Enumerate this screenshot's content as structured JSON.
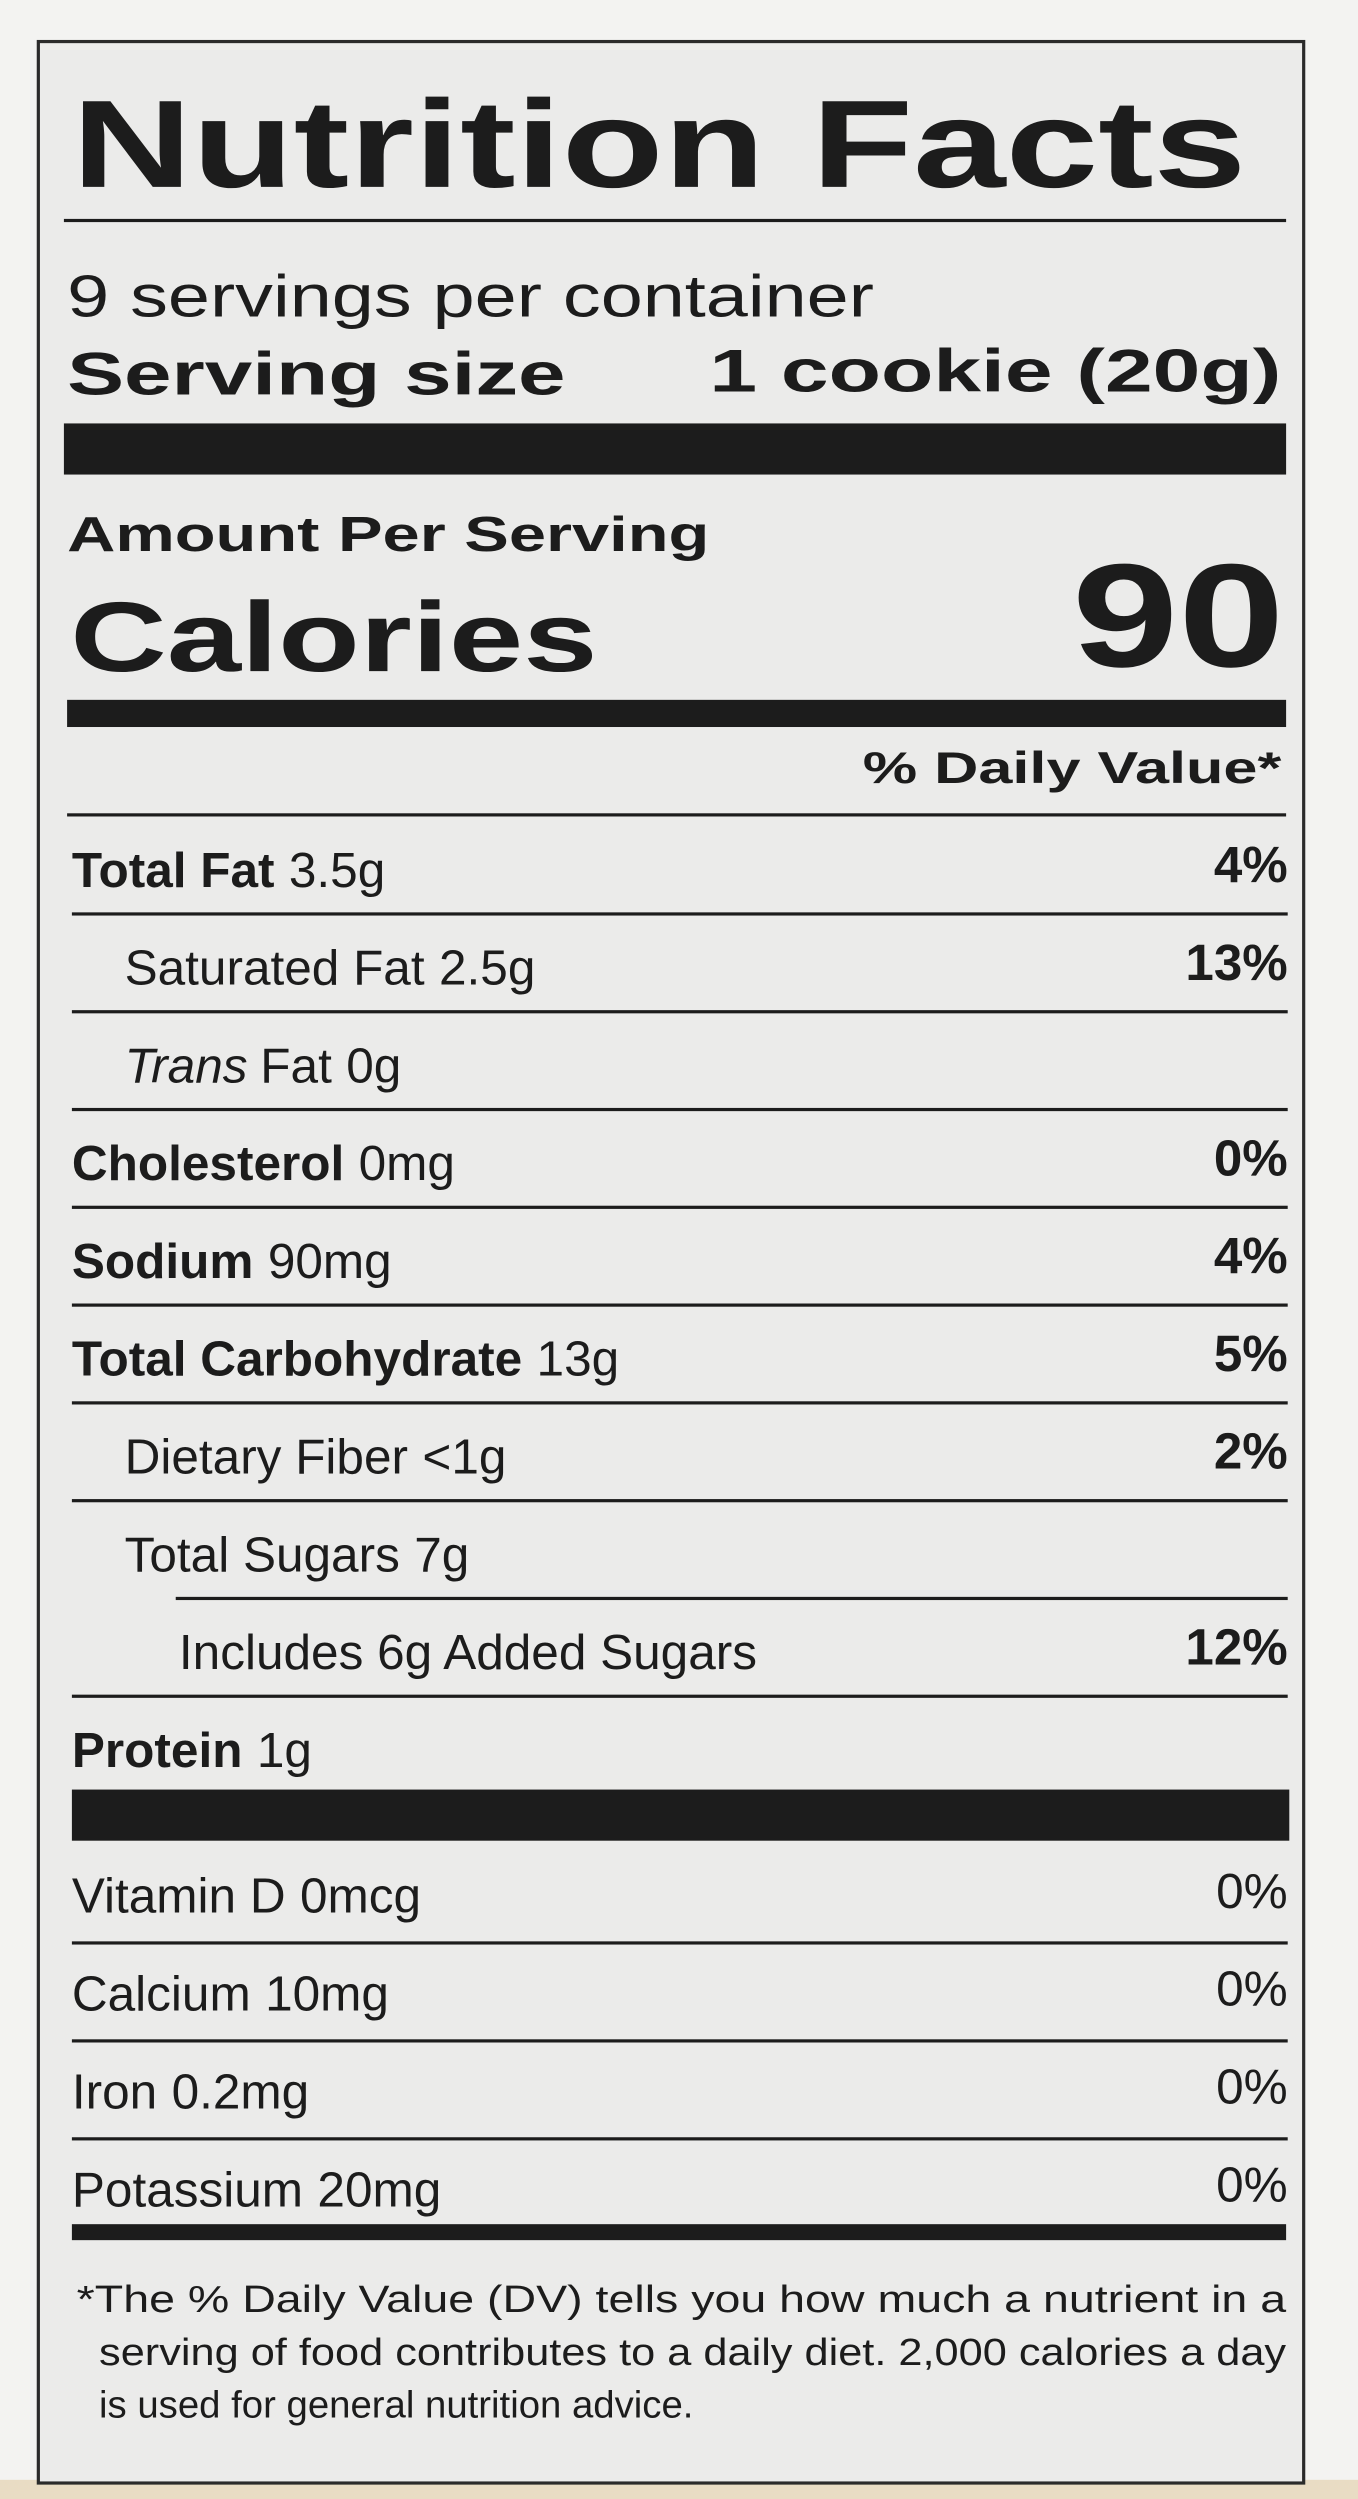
{
  "title": "Nutrition Facts",
  "servings": "9 servings per container",
  "serving_size": {
    "label": "Serving size",
    "value": "1 cookie (20g)"
  },
  "amount_per_serving": "Amount Per Serving",
  "calories": {
    "label": "Calories",
    "value": "90"
  },
  "daily_value_header": "% Daily Value*",
  "nutrients": [
    {
      "name": "Total Fat",
      "amount": "3.5g",
      "dv": "4%",
      "bold": true,
      "indent": 0
    },
    {
      "name": "Saturated Fat",
      "amount": "2.5g",
      "dv": "13%",
      "bold": false,
      "indent": 1
    },
    {
      "name_italic": "Trans",
      "name": "Fat",
      "amount": "0g",
      "bold": false,
      "indent": 1
    },
    {
      "name": "Cholesterol",
      "amount": "0mg",
      "dv": "0%",
      "bold": true,
      "indent": 0
    },
    {
      "name": "Sodium",
      "amount": "90mg",
      "dv": "4%",
      "bold": true,
      "indent": 0
    },
    {
      "name": "Total Carbohydrate",
      "amount": "13g",
      "dv": "5%",
      "bold": true,
      "indent": 0
    },
    {
      "name": "Dietary Fiber",
      "amount": "<1g",
      "dv": "2%",
      "bold": false,
      "indent": 1
    },
    {
      "name": "Total Sugars",
      "amount": "7g",
      "bold": false,
      "indent": 1
    },
    {
      "name": "Includes 6g Added Sugars",
      "dv": "12%",
      "bold": false,
      "indent": 2
    },
    {
      "name": "Protein",
      "amount": "1g",
      "bold": true,
      "indent": 0
    }
  ],
  "vitamins": [
    {
      "name": "Vitamin D",
      "amount": "0mcg",
      "dv": "0%"
    },
    {
      "name": "Calcium",
      "amount": "10mg",
      "dv": "0%"
    },
    {
      "name": "Iron",
      "amount": "0.2mg",
      "dv": "0%"
    },
    {
      "name": "Potassium",
      "amount": "20mg",
      "dv": "0%"
    }
  ],
  "footnote": [
    "*The % Daily Value (DV) tells you how much a nutrient in a",
    "serving of food contributes to a daily diet. 2,000 calories a day",
    "is used for general nutrition advice."
  ]
}
